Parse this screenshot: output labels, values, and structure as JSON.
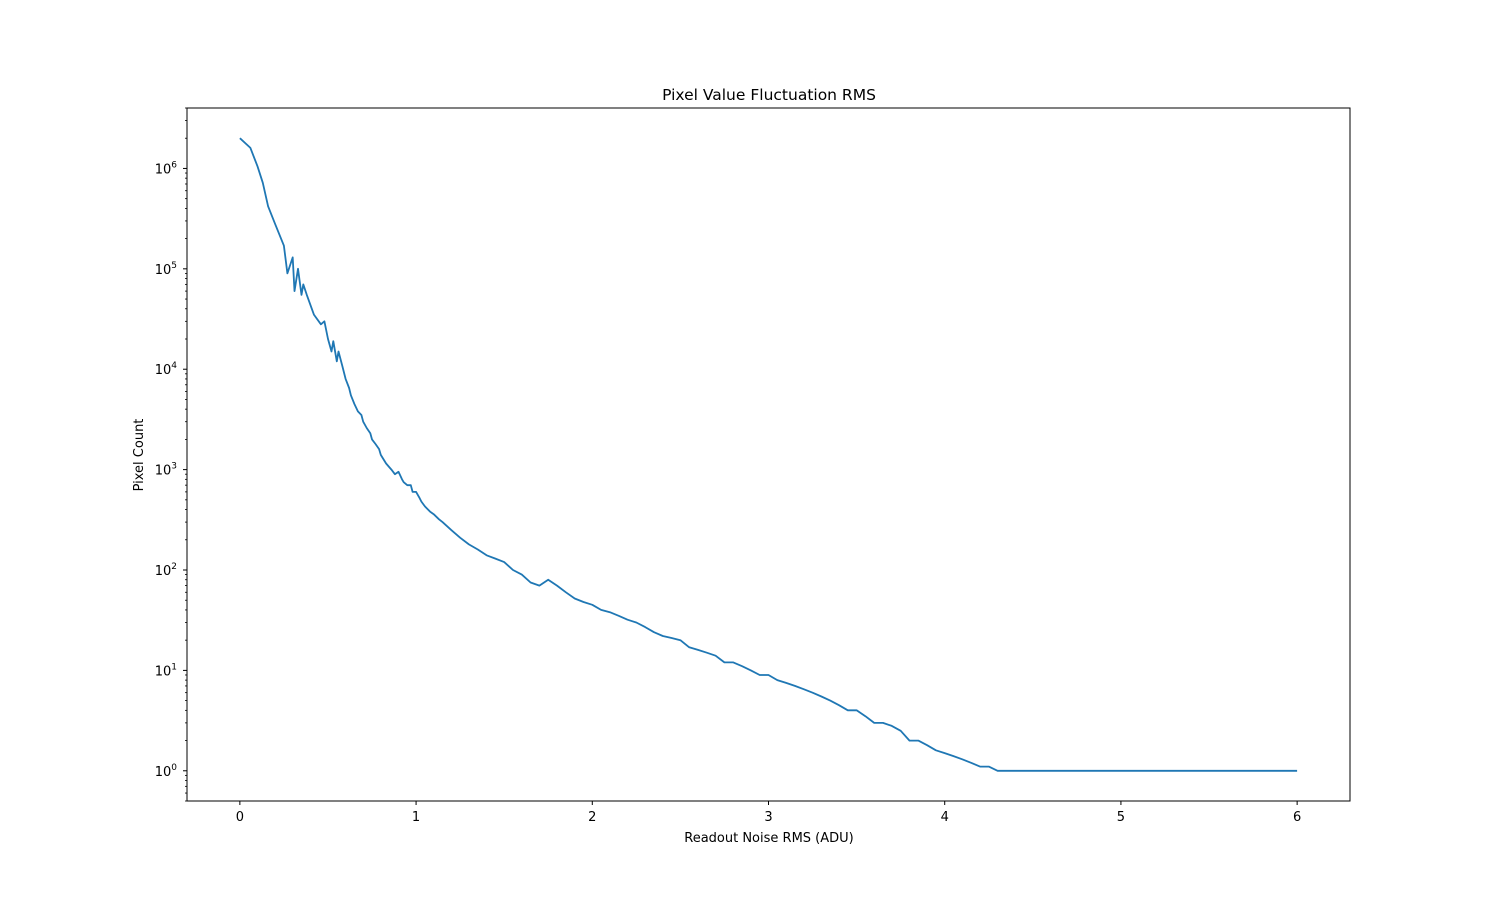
{
  "chart_data": {
    "type": "line",
    "title": "Pixel Value Fluctuation RMS",
    "xlabel": "Readout Noise RMS (ADU)",
    "ylabel": "Pixel Count",
    "xlim": [
      -0.3,
      6.3
    ],
    "ylim": [
      0.5,
      4000000
    ],
    "yscale": "log",
    "grid": false,
    "x_ticks": [
      0,
      1,
      2,
      3,
      4,
      5,
      6
    ],
    "x_tick_labels": [
      "0",
      "1",
      "2",
      "3",
      "4",
      "5",
      "6"
    ],
    "y_ticks": [
      1,
      10,
      100,
      1000,
      10000,
      100000,
      1000000
    ],
    "y_tick_labels": [
      {
        "base": "10",
        "exp": "0"
      },
      {
        "base": "10",
        "exp": "1"
      },
      {
        "base": "10",
        "exp": "2"
      },
      {
        "base": "10",
        "exp": "3"
      },
      {
        "base": "10",
        "exp": "4"
      },
      {
        "base": "10",
        "exp": "5"
      },
      {
        "base": "10",
        "exp": "6"
      }
    ],
    "line_color": "#1f77b4",
    "series": [
      {
        "x": [
          0.0,
          0.06,
          0.1,
          0.13,
          0.16,
          0.2,
          0.25,
          0.27,
          0.3,
          0.31,
          0.33,
          0.35,
          0.36,
          0.38,
          0.42,
          0.46,
          0.48,
          0.5,
          0.52,
          0.53,
          0.55,
          0.56,
          0.58,
          0.6,
          0.62,
          0.63,
          0.65,
          0.67,
          0.69,
          0.7,
          0.72,
          0.74,
          0.75,
          0.77,
          0.79,
          0.8,
          0.83,
          0.86,
          0.88,
          0.9,
          0.92,
          0.93,
          0.95,
          0.97,
          0.98,
          1.0,
          1.02,
          1.03,
          1.05,
          1.08,
          1.1,
          1.13,
          1.15,
          1.2,
          1.25,
          1.3,
          1.35,
          1.4,
          1.45,
          1.5,
          1.55,
          1.6,
          1.65,
          1.7,
          1.75,
          1.8,
          1.85,
          1.9,
          1.95,
          2.0,
          2.05,
          2.1,
          2.15,
          2.2,
          2.25,
          2.3,
          2.35,
          2.4,
          2.45,
          2.5,
          2.55,
          2.6,
          2.65,
          2.7,
          2.75,
          2.8,
          2.85,
          2.9,
          2.95,
          3.0,
          3.05,
          3.1,
          3.15,
          3.2,
          3.25,
          3.3,
          3.35,
          3.4,
          3.45,
          3.5,
          3.55,
          3.6,
          3.65,
          3.7,
          3.75,
          3.8,
          3.85,
          3.9,
          3.95,
          4.0,
          4.05,
          4.1,
          4.15,
          4.2,
          4.25,
          4.3,
          4.35,
          4.4,
          4.45,
          4.5,
          4.55,
          4.6,
          4.65,
          4.7,
          4.75,
          4.8,
          4.85,
          4.9,
          4.95,
          5.0,
          5.05,
          5.1,
          5.15,
          5.2,
          5.25,
          5.3,
          5.35,
          5.4,
          5.45,
          5.5,
          5.55,
          5.6,
          5.65,
          5.7,
          5.75,
          5.8,
          5.85,
          5.9,
          5.95,
          6.0
        ],
        "y": [
          2000000,
          1600000,
          1050000,
          720000,
          420000,
          280000,
          170000,
          90000,
          130000,
          60000,
          100000,
          55000,
          70000,
          55000,
          35000,
          28000,
          30000,
          20000,
          15000,
          19000,
          12000,
          15000,
          11000,
          8000,
          6500,
          5500,
          4500,
          3800,
          3500,
          3000,
          2600,
          2300,
          2000,
          1800,
          1600,
          1400,
          1150,
          1000,
          900,
          950,
          800,
          750,
          700,
          700,
          600,
          600,
          520,
          480,
          430,
          380,
          360,
          320,
          300,
          250,
          210,
          180,
          160,
          140,
          130,
          120,
          100,
          90,
          75,
          70,
          80,
          70,
          60,
          52,
          48,
          45,
          40,
          38,
          35,
          32,
          30,
          27,
          24,
          22,
          21,
          20,
          17,
          16,
          15,
          14,
          12,
          12,
          11,
          10,
          9,
          9,
          8,
          7.5,
          7,
          6.5,
          6,
          5.5,
          5,
          4.5,
          4,
          4,
          3.5,
          3,
          3,
          2.8,
          2.5,
          2,
          2,
          1.8,
          1.6,
          1.5,
          1.4,
          1.3,
          1.2,
          1.1,
          1.1,
          1.0,
          1.0,
          1.0,
          1.0,
          1.0,
          1.0,
          1.0,
          1.0,
          1.0,
          1.0,
          1.0,
          1.0,
          1.0,
          1.0,
          1.0,
          1.0,
          1.0,
          1.0,
          1.0,
          1.0,
          1.0,
          1.0,
          1.0,
          1.0,
          1.0,
          1.0,
          1.0,
          1.0,
          1.0,
          1.0,
          1.0,
          1.0,
          1.0,
          1.0,
          1.0
        ]
      }
    ]
  }
}
